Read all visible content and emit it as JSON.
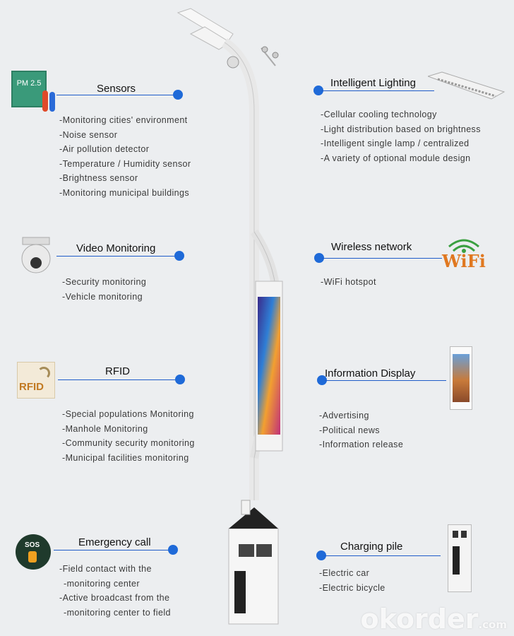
{
  "sections": {
    "sensors": {
      "title": "Sensors",
      "items": [
        "Monitoring cities' environment",
        "Noise sensor",
        "Air pollution detector",
        "Temperature / Humidity sensor",
        "Brightness sensor",
        "Monitoring municipal buildings"
      ],
      "icon_text": "PM 2.5"
    },
    "video": {
      "title": "Video Monitoring",
      "items": [
        "Security monitoring",
        "Vehicle monitoring"
      ]
    },
    "rfid": {
      "title": "RFID",
      "items": [
        "Special populations Monitoring",
        "Manhole Monitoring",
        "Community security monitoring",
        "Municipal facilities monitoring"
      ],
      "icon_text": "RFID"
    },
    "emergency": {
      "title": "Emergency call",
      "items": [
        "Field contact with the",
        "monitoring center",
        "Active broadcast from the",
        "monitoring center to field"
      ],
      "icon_text": "SOS"
    },
    "lighting": {
      "title": "Intelligent Lighting",
      "items": [
        "Cellular cooling technology",
        "Light distribution based on brightness",
        "Intelligent single lamp / centralized",
        "A variety of optional module design"
      ]
    },
    "wireless": {
      "title": "Wireless network",
      "items": [
        "WiFi hotspot"
      ],
      "icon_text": "WiFi"
    },
    "display": {
      "title": "Information Display",
      "items": [
        "Advertising",
        "Political news",
        "Information release"
      ]
    },
    "charging": {
      "title": "Charging pile",
      "items": [
        "Electric car",
        "Electric bicycle"
      ]
    }
  },
  "watermark": {
    "main": "okorder",
    "suffix": ".com"
  },
  "colors": {
    "accent": "#1f6ad8",
    "background": "#eceef0"
  }
}
